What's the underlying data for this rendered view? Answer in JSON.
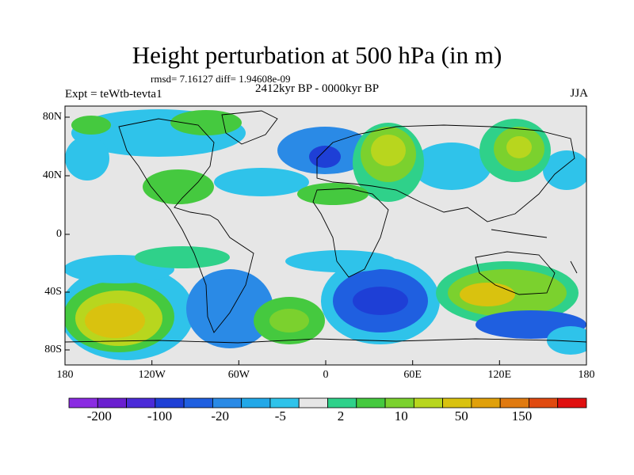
{
  "map": {
    "title": "Height perturbation at 500 hPa (in m)",
    "stats": "rmsd= 7.16127 diff= 1.94608e-09",
    "experiment": "Expt = teWtb-tevta1",
    "period": "2412kyr BP - 0000kyr BP",
    "season": "JJA",
    "lat_labels": [
      "80N",
      "40N",
      "0",
      "40S",
      "80S"
    ],
    "lon_labels": [
      "180",
      "120W",
      "60W",
      "0",
      "60E",
      "120E",
      "180"
    ]
  },
  "colorbar": {
    "labels": [
      "-200",
      "-100",
      "-20",
      "-5",
      "2",
      "10",
      "50",
      "150"
    ],
    "colors": [
      "#8a2be2",
      "#6a1fd0",
      "#4b2bd8",
      "#1e3fd6",
      "#1f5fe0",
      "#2a8ae6",
      "#22a8e8",
      "#2fc3ea",
      "#e6e6e6",
      "#2fd18a",
      "#45c93f",
      "#7bd12e",
      "#b8d61e",
      "#d9c20f",
      "#e0a00a",
      "#e07a10",
      "#e04a10",
      "#e01010"
    ]
  }
}
